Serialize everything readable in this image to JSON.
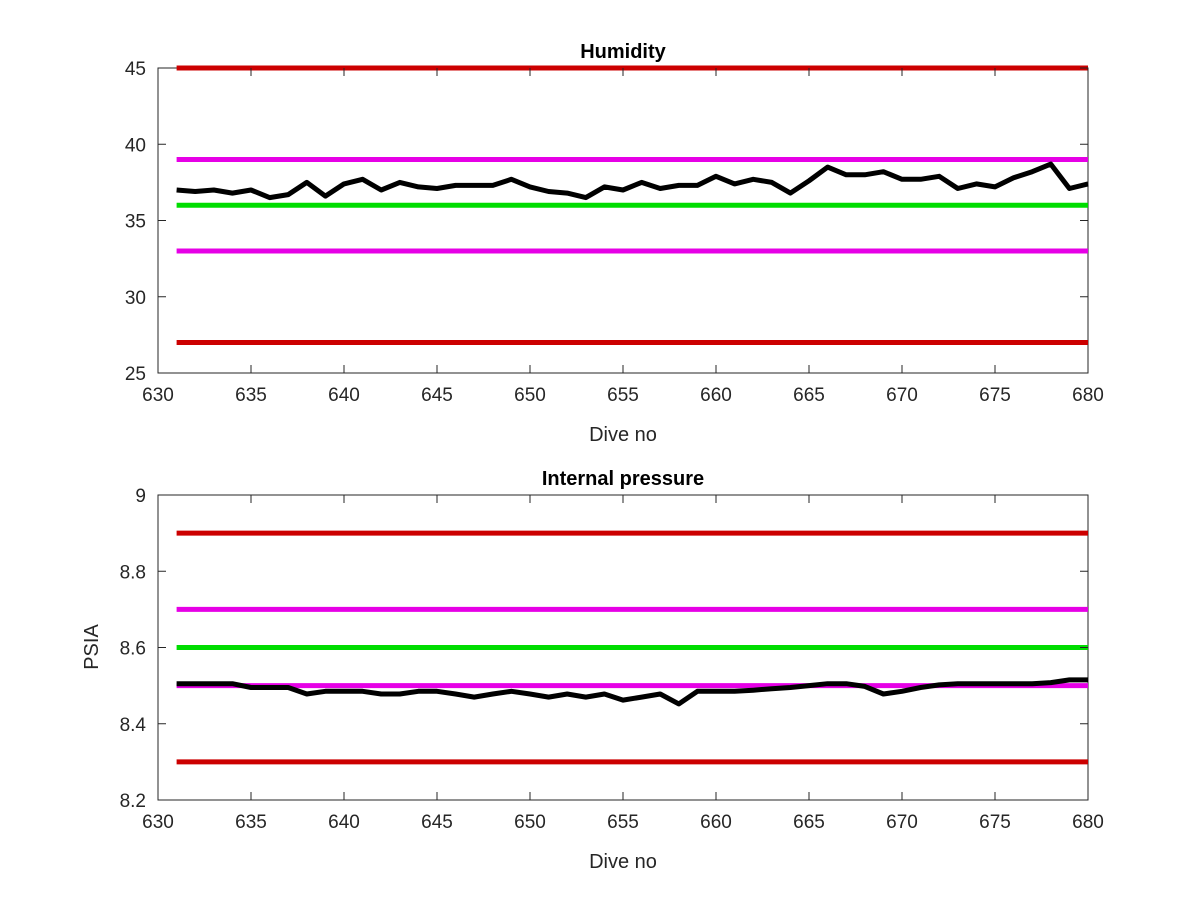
{
  "chart_data": [
    {
      "type": "line",
      "title": "Humidity",
      "xlabel": "Dive no",
      "ylabel": "",
      "xlim": [
        630,
        680
      ],
      "ylim": [
        25,
        45
      ],
      "xticks": [
        630,
        635,
        640,
        645,
        650,
        655,
        660,
        665,
        670,
        675,
        680
      ],
      "yticks": [
        25,
        30,
        35,
        40,
        45
      ],
      "grid": false,
      "reference_lines": [
        {
          "y": 45,
          "color": "#cc0000"
        },
        {
          "y": 39,
          "color": "#e600e6"
        },
        {
          "y": 36,
          "color": "#00dd00"
        },
        {
          "y": 33,
          "color": "#e600e6"
        },
        {
          "y": 27,
          "color": "#cc0000"
        }
      ],
      "series": [
        {
          "color": "#000000",
          "x": [
            631,
            632,
            633,
            634,
            635,
            636,
            637,
            638,
            639,
            640,
            641,
            642,
            643,
            644,
            645,
            646,
            647,
            648,
            649,
            650,
            651,
            652,
            653,
            654,
            655,
            656,
            657,
            658,
            659,
            660,
            661,
            662,
            663,
            664,
            665,
            666,
            667,
            668,
            669,
            670,
            671,
            672,
            673,
            674,
            675,
            676,
            677,
            678,
            679,
            680
          ],
          "y": [
            37.0,
            36.9,
            37.0,
            36.8,
            37.0,
            36.5,
            36.7,
            37.5,
            36.6,
            37.4,
            37.7,
            37.0,
            37.5,
            37.2,
            37.1,
            37.3,
            37.3,
            37.3,
            37.7,
            37.2,
            36.9,
            36.8,
            36.5,
            37.2,
            37.0,
            37.5,
            37.1,
            37.3,
            37.3,
            37.9,
            37.4,
            37.7,
            37.5,
            36.8,
            37.6,
            38.5,
            38.0,
            38.0,
            38.2,
            37.7,
            37.7,
            37.9,
            37.1,
            37.4,
            37.2,
            37.8,
            38.2,
            38.7,
            37.1,
            37.4
          ]
        }
      ]
    },
    {
      "type": "line",
      "title": "Internal pressure",
      "xlabel": "Dive no",
      "ylabel": "PSIA",
      "xlim": [
        630,
        680
      ],
      "ylim": [
        8.2,
        9
      ],
      "xticks": [
        630,
        635,
        640,
        645,
        650,
        655,
        660,
        665,
        670,
        675,
        680
      ],
      "yticks": [
        8.2,
        8.4,
        8.6,
        8.8,
        9
      ],
      "grid": false,
      "reference_lines": [
        {
          "y": 8.9,
          "color": "#cc0000"
        },
        {
          "y": 8.7,
          "color": "#e600e6"
        },
        {
          "y": 8.6,
          "color": "#00dd00"
        },
        {
          "y": 8.5,
          "color": "#e600e6"
        },
        {
          "y": 8.3,
          "color": "#cc0000"
        }
      ],
      "series": [
        {
          "color": "#000000",
          "x": [
            631,
            632,
            633,
            634,
            635,
            636,
            637,
            638,
            639,
            640,
            641,
            642,
            643,
            644,
            645,
            646,
            647,
            648,
            649,
            650,
            651,
            652,
            653,
            654,
            655,
            656,
            657,
            658,
            659,
            660,
            661,
            662,
            663,
            664,
            665,
            666,
            667,
            668,
            669,
            670,
            671,
            672,
            673,
            674,
            675,
            676,
            677,
            678,
            679,
            680
          ],
          "y": [
            8.505,
            8.505,
            8.505,
            8.505,
            8.495,
            8.495,
            8.495,
            8.478,
            8.485,
            8.485,
            8.485,
            8.478,
            8.478,
            8.485,
            8.485,
            8.478,
            8.47,
            8.478,
            8.485,
            8.478,
            8.47,
            8.478,
            8.47,
            8.478,
            8.462,
            8.47,
            8.478,
            8.452,
            8.485,
            8.485,
            8.485,
            8.488,
            8.492,
            8.495,
            8.5,
            8.505,
            8.505,
            8.498,
            8.478,
            8.485,
            8.495,
            8.502,
            8.505,
            8.505,
            8.505,
            8.505,
            8.505,
            8.508,
            8.515,
            8.515
          ]
        }
      ]
    }
  ]
}
